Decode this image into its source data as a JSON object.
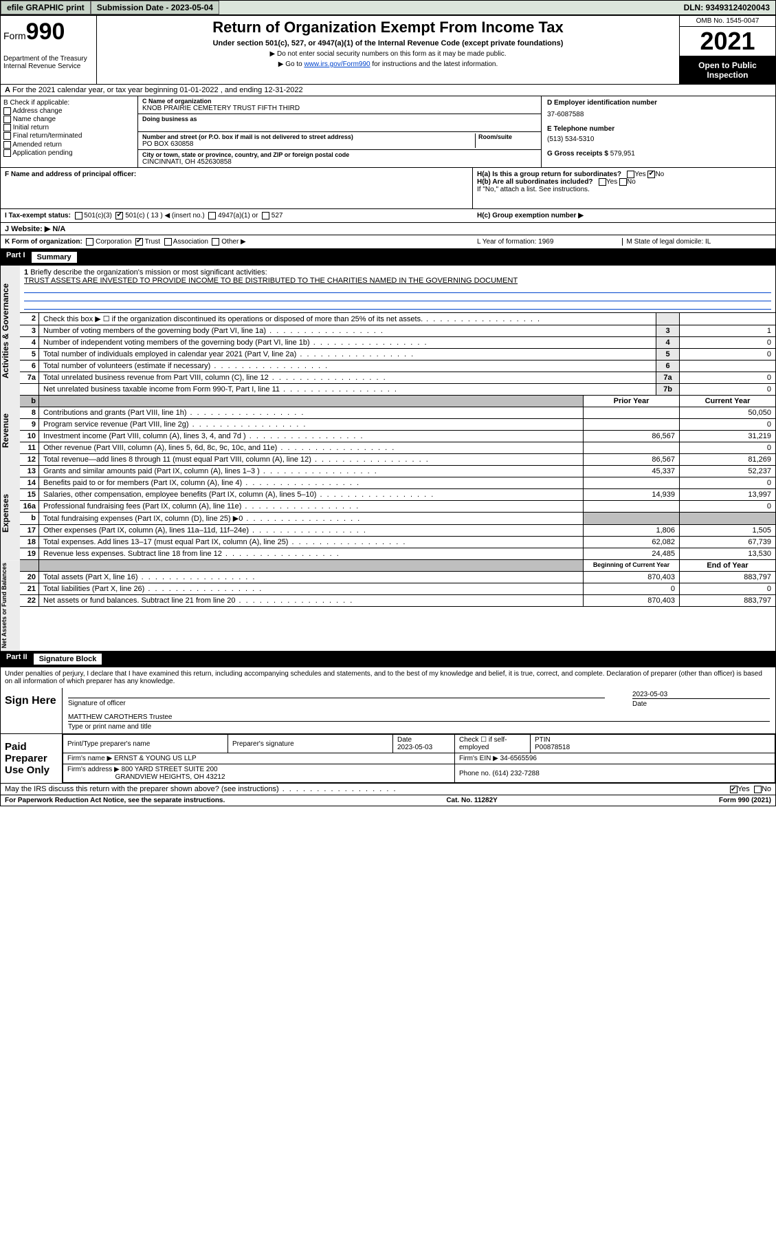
{
  "topbar": {
    "efile": "efile GRAPHIC print",
    "sub_label": "Submission Date - 2023-05-04",
    "dln": "DLN: 93493124020043"
  },
  "header": {
    "form_prefix": "Form",
    "form_num": "990",
    "dept": "Department of the Treasury\nInternal Revenue Service",
    "title": "Return of Organization Exempt From Income Tax",
    "subtitle": "Under section 501(c), 527, or 4947(a)(1) of the Internal Revenue Code (except private foundations)",
    "note1": "▶ Do not enter social security numbers on this form as it may be made public.",
    "note2_pre": "▶ Go to ",
    "note2_link": "www.irs.gov/Form990",
    "note2_post": " for instructions and the latest information.",
    "omb": "OMB No. 1545-0047",
    "year": "2021",
    "inspect": "Open to Public Inspection"
  },
  "lineA": "For the 2021 calendar year, or tax year beginning 01-01-2022   , and ending 12-31-2022",
  "colB": {
    "hdr": "B Check if applicable:",
    "opts": [
      "Address change",
      "Name change",
      "Initial return",
      "Final return/terminated",
      "Amended return",
      "Application pending"
    ]
  },
  "colC": {
    "name_lab": "C Name of organization",
    "name": "KNOB PRAIRIE CEMETERY TRUST FIFTH THIRD",
    "dba": "Doing business as",
    "addr_lab": "Number and street (or P.O. box if mail is not delivered to street address)",
    "room": "Room/suite",
    "addr": "PO BOX 630858",
    "city_lab": "City or town, state or province, country, and ZIP or foreign postal code",
    "city": "CINCINNATI, OH  452630858"
  },
  "colD": {
    "ein_lab": "D Employer identification number",
    "ein": "37-6087588",
    "tel_lab": "E Telephone number",
    "tel": "(513) 534-5310",
    "gross_lab": "G Gross receipts $",
    "gross": "579,951"
  },
  "rowF": "F  Name and address of principal officer:",
  "rowH": {
    "ha": "H(a)  Is this a group return for subordinates?",
    "ha_ans": "No",
    "hb": "H(b)  Are all subordinates included?",
    "hb_note": "If \"No,\" attach a list. See instructions.",
    "hc": "H(c)  Group exemption number ▶"
  },
  "rowI": {
    "lab": "I    Tax-exempt status:",
    "o1": "501(c)(3)",
    "o2": "501(c) ( 13 ) ◀ (insert no.)",
    "o3": "4947(a)(1) or",
    "o4": "527"
  },
  "rowJ": "J   Website: ▶  N/A",
  "rowK": {
    "lab": "K Form of organization:",
    "types": [
      "Corporation",
      "Trust",
      "Association",
      "Other ▶"
    ],
    "checked_index": 1,
    "year_lab": "L Year of formation: 1969",
    "state_lab": "M State of legal domicile: IL"
  },
  "part1": {
    "num": "Part I",
    "title": "Summary"
  },
  "line1": {
    "num": "1",
    "text": "Briefly describe the organization's mission or most significant activities:",
    "mission": "TRUST ASSETS ARE INVESTED TO PROVIDE INCOME TO BE DISTRIBUTED TO THE CHARITIES NAMED IN THE GOVERNING DOCUMENT"
  },
  "gov_rows": [
    {
      "n": "2",
      "t": "Check this box ▶ ☐  if the organization discontinued its operations or disposed of more than 25% of its net assets.",
      "box": "",
      "v": ""
    },
    {
      "n": "3",
      "t": "Number of voting members of the governing body (Part VI, line 1a)",
      "box": "3",
      "v": "1"
    },
    {
      "n": "4",
      "t": "Number of independent voting members of the governing body (Part VI, line 1b)",
      "box": "4",
      "v": "0"
    },
    {
      "n": "5",
      "t": "Total number of individuals employed in calendar year 2021 (Part V, line 2a)",
      "box": "5",
      "v": "0"
    },
    {
      "n": "6",
      "t": "Total number of volunteers (estimate if necessary)",
      "box": "6",
      "v": ""
    },
    {
      "n": "7a",
      "t": "Total unrelated business revenue from Part VIII, column (C), line 12",
      "box": "7a",
      "v": "0"
    },
    {
      "n": "",
      "t": "Net unrelated business taxable income from Form 990-T, Part I, line 11",
      "box": "7b",
      "v": "0"
    }
  ],
  "col_headers": {
    "prior": "Prior Year",
    "curr": "Current Year"
  },
  "rev_rows": [
    {
      "n": "8",
      "t": "Contributions and grants (Part VIII, line 1h)",
      "p": "",
      "c": "50,050"
    },
    {
      "n": "9",
      "t": "Program service revenue (Part VIII, line 2g)",
      "p": "",
      "c": "0"
    },
    {
      "n": "10",
      "t": "Investment income (Part VIII, column (A), lines 3, 4, and 7d )",
      "p": "86,567",
      "c": "31,219"
    },
    {
      "n": "11",
      "t": "Other revenue (Part VIII, column (A), lines 5, 6d, 8c, 9c, 10c, and 11e)",
      "p": "",
      "c": "0"
    },
    {
      "n": "12",
      "t": "Total revenue—add lines 8 through 11 (must equal Part VIII, column (A), line 12)",
      "p": "86,567",
      "c": "81,269"
    }
  ],
  "exp_rows": [
    {
      "n": "13",
      "t": "Grants and similar amounts paid (Part IX, column (A), lines 1–3 )",
      "p": "45,337",
      "c": "52,237"
    },
    {
      "n": "14",
      "t": "Benefits paid to or for members (Part IX, column (A), line 4)",
      "p": "",
      "c": "0"
    },
    {
      "n": "15",
      "t": "Salaries, other compensation, employee benefits (Part IX, column (A), lines 5–10)",
      "p": "14,939",
      "c": "13,997"
    },
    {
      "n": "16a",
      "t": "Professional fundraising fees (Part IX, column (A), line 11e)",
      "p": "",
      "c": "0"
    },
    {
      "n": "b",
      "t": "Total fundraising expenses (Part IX, column (D), line 25) ▶0",
      "p": "GREY",
      "c": "GREY"
    },
    {
      "n": "17",
      "t": "Other expenses (Part IX, column (A), lines 11a–11d, 11f–24e)",
      "p": "1,806",
      "c": "1,505"
    },
    {
      "n": "18",
      "t": "Total expenses. Add lines 13–17 (must equal Part IX, column (A), line 25)",
      "p": "62,082",
      "c": "67,739"
    },
    {
      "n": "19",
      "t": "Revenue less expenses. Subtract line 18 from line 12",
      "p": "24,485",
      "c": "13,530"
    }
  ],
  "na_headers": {
    "beg": "Beginning of Current Year",
    "end": "End of Year"
  },
  "na_rows": [
    {
      "n": "20",
      "t": "Total assets (Part X, line 16)",
      "p": "870,403",
      "c": "883,797"
    },
    {
      "n": "21",
      "t": "Total liabilities (Part X, line 26)",
      "p": "0",
      "c": "0"
    },
    {
      "n": "22",
      "t": "Net assets or fund balances. Subtract line 21 from line 20",
      "p": "870,403",
      "c": "883,797"
    }
  ],
  "part2": {
    "num": "Part II",
    "title": "Signature Block"
  },
  "sig_decl": "Under penalties of perjury, I declare that I have examined this return, including accompanying schedules and statements, and to the best of my knowledge and belief, it is true, correct, and complete. Declaration of preparer (other than officer) is based on all information of which preparer has any knowledge.",
  "sign_here": {
    "label": "Sign Here",
    "sig_lab": "Signature of officer",
    "date_lab": "Date",
    "date": "2023-05-03",
    "name": "MATTHEW CAROTHERS  Trustee",
    "name_lab": "Type or print name and title"
  },
  "prep": {
    "label": "Paid Preparer Use Only",
    "h1": "Print/Type preparer's name",
    "h2": "Preparer's signature",
    "h3": "Date",
    "date": "2023-05-03",
    "h4": "Check ☐ if self-employed",
    "h5": "PTIN",
    "ptin": "P00878518",
    "firm_name_lab": "Firm's name    ▶",
    "firm_name": "ERNST & YOUNG US LLP",
    "firm_ein_lab": "Firm's EIN ▶",
    "firm_ein": "34-6565596",
    "firm_addr_lab": "Firm's address ▶",
    "firm_addr1": "800 YARD STREET SUITE 200",
    "firm_addr2": "GRANDVIEW HEIGHTS, OH  43212",
    "firm_tel_lab": "Phone no.",
    "firm_tel": "(614) 232-7288"
  },
  "discuss": "May the IRS discuss this return with the preparer shown above? (see instructions)",
  "discuss_ans": "Yes",
  "foot": {
    "left": "For Paperwork Reduction Act Notice, see the separate instructions.",
    "mid": "Cat. No. 11282Y",
    "right": "Form 990 (2021)"
  },
  "section_labels": {
    "gov": "Activities & Governance",
    "rev": "Revenue",
    "exp": "Expenses",
    "na": "Net Assets or Fund Balances"
  }
}
